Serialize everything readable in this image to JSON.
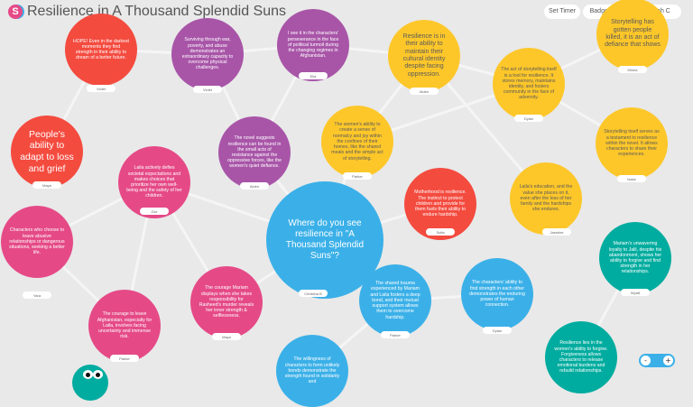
{
  "app": {
    "title": "Resilience in A Thousand Splendid Suns",
    "logo_letter": "S"
  },
  "toolbar": {
    "set_timer": "Set Timer",
    "badges": "Badges",
    "more": "•••",
    "user": "Sarah C"
  },
  "colors": {
    "red": "#f44b3f",
    "purple": "#a855a8",
    "pink": "#e54a87",
    "yellow": "#fdc72a",
    "blue": "#3bb0e8",
    "teal": "#00ac9f"
  },
  "nodes": [
    {
      "text": "HOPE! Even in the darkest moments they find strength in their ability to dream of a better future.",
      "author": "Violet",
      "color": "red"
    },
    {
      "text": "Surviving through war, poverty, and abuse demonstrates an extraordinary capacity to overcome physical challenges.",
      "author": "Violet",
      "color": "purple"
    },
    {
      "text": "I see it in the characters' perseverance in the face of political turmoil during the changing regimes in Afghanistan.",
      "author": "Ella",
      "color": "purple"
    },
    {
      "text": "Resilience is in their ability to maintain their cultural identity despite facing oppression.",
      "author": "Aiden",
      "color": "yellow"
    },
    {
      "text": "The act of storytelling itself is a tool for resilience. It stores memory, maintains identity, and fosters community in the face of adversity.",
      "author": "Dylan",
      "color": "yellow"
    },
    {
      "text": "Storytelling has gotten people killed, it is an act of defiance that shows",
      "author": "Minna",
      "color": "yellow"
    },
    {
      "text": "Storytelling itself serves as a testament to resilience within the novel. It allows characters to share their experiences.",
      "author": "Isaac",
      "color": "yellow"
    },
    {
      "text": "The women's ability to create a sense of normalcy and joy within the confines of their homes, like the shared meals and the simple act of storytelling.",
      "author": "Parker",
      "color": "yellow"
    },
    {
      "text": "People's ability to adapt to loss and grief",
      "author": "Maya",
      "color": "red"
    },
    {
      "text": "Laila actively defies societal expectations and makes choices that prioritize her own well-being and the safety of her children.",
      "author": "Zoe",
      "color": "pink"
    },
    {
      "text": "The novel suggests resilience can be found in the small acts of resistance against the oppressive forces, like the women's quiet defiance.",
      "author": "Aiden",
      "color": "purple"
    },
    {
      "text": "Where do you see resilience in \"A Thousand Splendid Suns\"?",
      "author": "Christina B",
      "color": "blue"
    },
    {
      "text": "Motherhood is resilience. The instinct to protect children and provide for them fuels their ability to endure hardship.",
      "author": "Sofia",
      "color": "red"
    },
    {
      "text": "Laila's education, and the value she places on it, even after the loss of her family and the hardships she endures.",
      "author": "Jasmine",
      "color": "yellow"
    },
    {
      "text": "Characters who choose to leave abusive relationships or dangerous situations, seeking a better life.",
      "author": "Yara",
      "color": "pink"
    },
    {
      "text": "The courage to leave Afghanistan, especially for Laila, involves facing uncertainty and immense risk.",
      "author": "Parker",
      "color": "pink"
    },
    {
      "text": "The courage Mariam displays when she takes responsibility for Rasheed's murder reveals her inner strength & selflessness.",
      "author": "Maya",
      "color": "pink"
    },
    {
      "text": "The shared trauma experienced by Mariam and Laila fosters a deep bond, and their mutual support system allows them to overcome hardship.",
      "author": "Parker",
      "color": "blue"
    },
    {
      "text": "The characters' ability to find strength in each other demonstrates the enduring power of human connection.",
      "author": "Dylan",
      "color": "blue"
    },
    {
      "text": "Mariam's unwavering loyalty to Jalil, despite his abandonment, shows her ability to forgive and find strength in her relationships.",
      "author": "Wyatt",
      "color": "teal"
    },
    {
      "text": "Resilience lies in the women's ability to forgive. Forgiveness allows characters to release emotional burdens and rebuild relationships.",
      "author": "",
      "color": "teal"
    },
    {
      "text": "The willingness of characters to form unlikely bonds demonstrate the strength found in solidarity and",
      "author": "",
      "color": "blue"
    }
  ],
  "zoom": {
    "minus": "-",
    "plus": "+"
  }
}
